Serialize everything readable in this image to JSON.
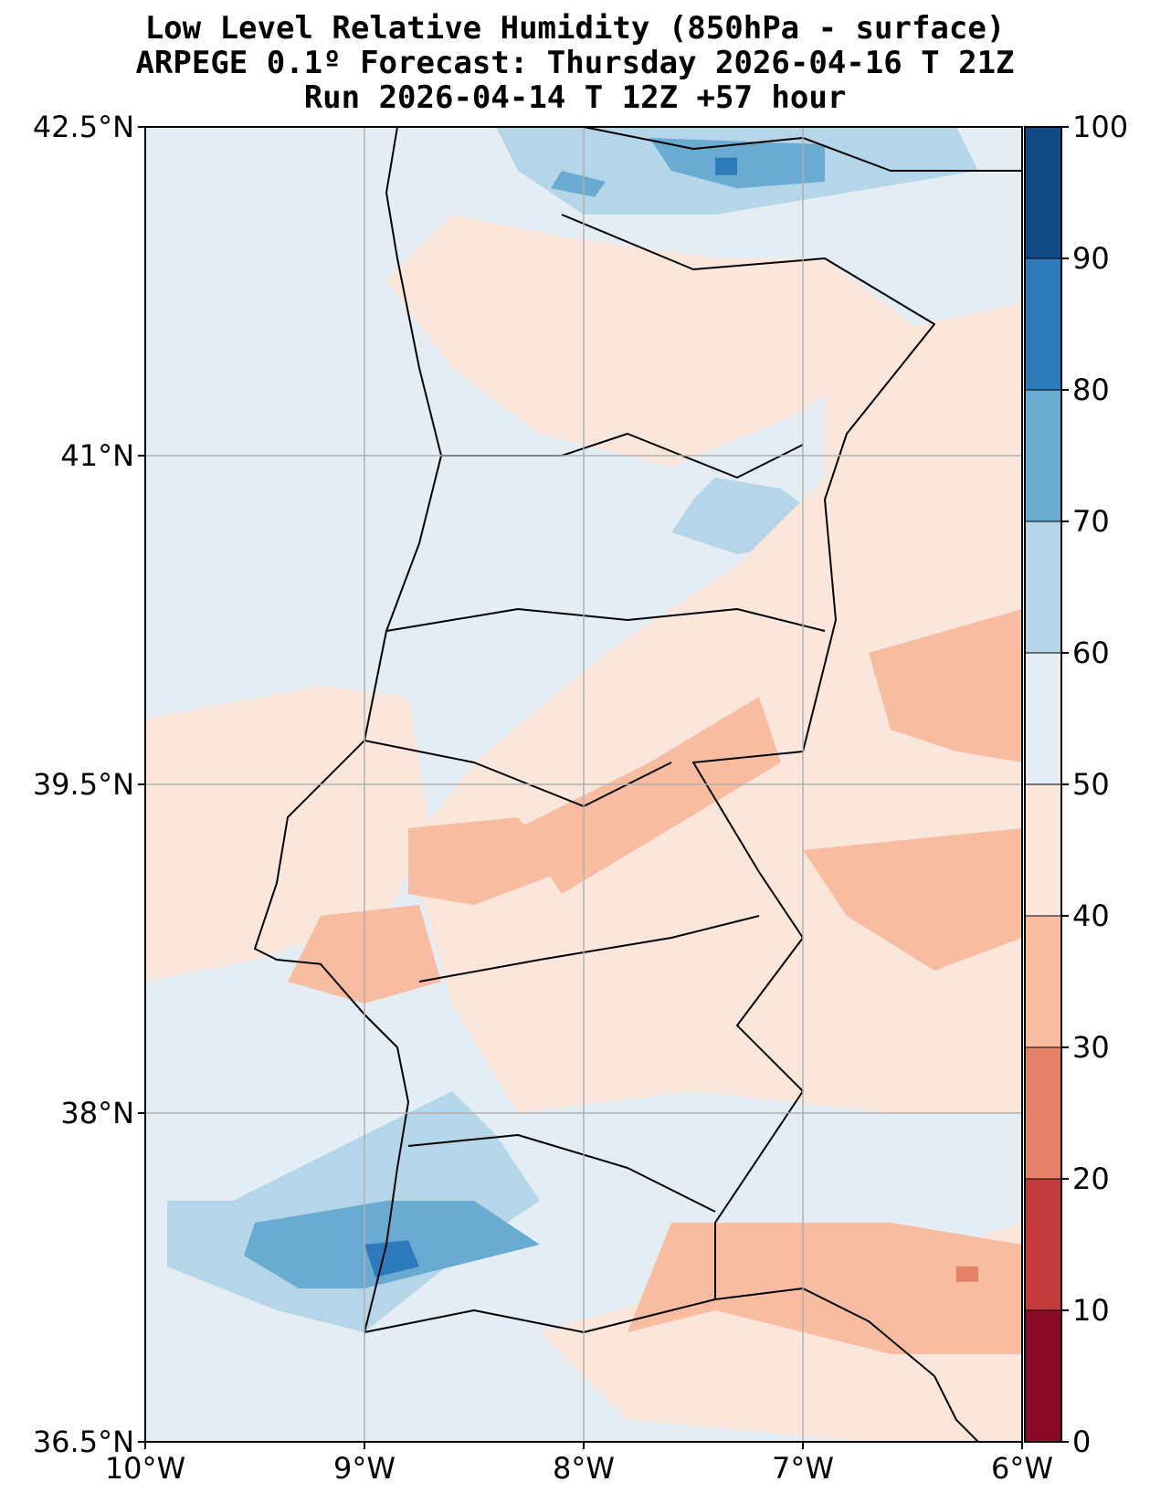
{
  "title": {
    "line1": "Low Level Relative Humidity (850hPa - surface)",
    "line2": "ARPEGE 0.1º Forecast: Thursday 2026-04-16 T 21Z",
    "line3": "Run 2026-04-14 T 12Z +57 hour"
  },
  "map": {
    "lon_range": [
      -10,
      -6
    ],
    "lat_range": [
      36.5,
      42.5
    ],
    "background_color": "#e4ecf4",
    "lon_ticks": [
      {
        "value": -10,
        "label": "10°W"
      },
      {
        "value": -9,
        "label": "9°W"
      },
      {
        "value": -8,
        "label": "8°W"
      },
      {
        "value": -7,
        "label": "7°W"
      },
      {
        "value": -6,
        "label": "6°W"
      }
    ],
    "lat_ticks": [
      {
        "value": 42.5,
        "label": "42.5°N"
      },
      {
        "value": 41,
        "label": "41°N"
      },
      {
        "value": 39.5,
        "label": "39.5°N"
      },
      {
        "value": 38,
        "label": "38°N"
      },
      {
        "value": 36.5,
        "label": "36.5°N"
      }
    ],
    "grid": true
  },
  "colorbar": {
    "levels": [
      0,
      10,
      20,
      30,
      40,
      50,
      60,
      70,
      80,
      90,
      100
    ],
    "colors": [
      "#8b0a26",
      "#c23a3b",
      "#e58267",
      "#f8bda1",
      "#fbe6dc",
      "#e4ecf4",
      "#b5d5e8",
      "#6aabd2",
      "#2e7bbb",
      "#124a87"
    ],
    "labels": [
      "0",
      "10",
      "20",
      "30",
      "40",
      "50",
      "60",
      "70",
      "80",
      "90",
      "100"
    ]
  },
  "regions": [
    {
      "name": "northern-moist-area",
      "level": 60,
      "lonlat": [
        [
          -8.4,
          42.5
        ],
        [
          -6.3,
          42.5
        ],
        [
          -6.2,
          42.3
        ],
        [
          -6.8,
          42.2
        ],
        [
          -7.4,
          42.1
        ],
        [
          -8.0,
          42.1
        ],
        [
          -8.3,
          42.3
        ]
      ]
    },
    {
      "name": "northern-core",
      "level": 70,
      "lonlat": [
        [
          -7.7,
          42.45
        ],
        [
          -6.9,
          42.42
        ],
        [
          -6.9,
          42.25
        ],
        [
          -7.3,
          42.22
        ],
        [
          -7.6,
          42.3
        ]
      ]
    },
    {
      "name": "northern-small-core",
      "level": 70,
      "lonlat": [
        [
          -8.1,
          42.3
        ],
        [
          -7.9,
          42.25
        ],
        [
          -7.95,
          42.18
        ],
        [
          -8.15,
          42.22
        ]
      ]
    },
    {
      "name": "northern-dark-cell",
      "level": 80,
      "lonlat": [
        [
          -7.4,
          42.36
        ],
        [
          -7.3,
          42.36
        ],
        [
          -7.3,
          42.28
        ],
        [
          -7.4,
          42.28
        ]
      ]
    },
    {
      "name": "central-moist-area",
      "level": 60,
      "lonlat": [
        [
          -7.4,
          40.9
        ],
        [
          -7.1,
          40.85
        ],
        [
          -6.9,
          40.7
        ],
        [
          -7.0,
          40.6
        ],
        [
          -7.3,
          40.55
        ],
        [
          -7.6,
          40.65
        ],
        [
          -7.5,
          40.8
        ]
      ]
    },
    {
      "name": "southwest-moist-area",
      "level": 60,
      "lonlat": [
        [
          -9.6,
          37.6
        ],
        [
          -9.0,
          37.9
        ],
        [
          -8.6,
          38.1
        ],
        [
          -8.4,
          37.9
        ],
        [
          -8.2,
          37.6
        ],
        [
          -8.5,
          37.4
        ],
        [
          -9.0,
          37.0
        ],
        [
          -9.4,
          37.1
        ],
        [
          -9.9,
          37.3
        ],
        [
          -9.9,
          37.6
        ]
      ]
    },
    {
      "name": "southwest-core",
      "level": 70,
      "lonlat": [
        [
          -9.5,
          37.5
        ],
        [
          -8.9,
          37.6
        ],
        [
          -8.5,
          37.6
        ],
        [
          -8.2,
          37.4
        ],
        [
          -8.6,
          37.3
        ],
        [
          -9.0,
          37.2
        ],
        [
          -9.3,
          37.2
        ],
        [
          -9.55,
          37.35
        ]
      ]
    },
    {
      "name": "southwest-dark-cell",
      "level": 80,
      "lonlat": [
        [
          -9.0,
          37.4
        ],
        [
          -8.8,
          37.42
        ],
        [
          -8.75,
          37.3
        ],
        [
          -8.95,
          37.25
        ]
      ]
    },
    {
      "name": "south-moist-area",
      "level": 60,
      "lonlat": [
        [
          -7.3,
          36.9
        ],
        [
          -6.8,
          36.95
        ],
        [
          -6.5,
          36.8
        ],
        [
          -6.8,
          36.65
        ],
        [
          -7.4,
          36.6
        ],
        [
          -7.6,
          36.7
        ]
      ]
    },
    {
      "name": "north-dry-area",
      "level": 40,
      "lonlat": [
        [
          -8.6,
          42.1
        ],
        [
          -8.1,
          42.0
        ],
        [
          -7.4,
          41.9
        ],
        [
          -6.9,
          41.9
        ],
        [
          -6.5,
          41.6
        ],
        [
          -7.0,
          41.2
        ],
        [
          -7.6,
          40.95
        ],
        [
          -8.2,
          41.1
        ],
        [
          -8.6,
          41.4
        ],
        [
          -8.9,
          41.8
        ]
      ]
    },
    {
      "name": "east-dry-area",
      "level": 40,
      "lonlat": [
        [
          -6.9,
          41.5
        ],
        [
          -6.0,
          41.7
        ],
        [
          -6.0,
          38.0
        ],
        [
          -6.6,
          38.0
        ],
        [
          -7.5,
          38.1
        ],
        [
          -8.3,
          38.0
        ],
        [
          -8.6,
          38.5
        ],
        [
          -8.8,
          39.2
        ],
        [
          -8.5,
          39.6
        ],
        [
          -7.9,
          40.1
        ],
        [
          -7.3,
          40.5
        ],
        [
          -6.9,
          40.9
        ]
      ]
    },
    {
      "name": "west-dry-band",
      "level": 40,
      "lonlat": [
        [
          -10.0,
          39.8
        ],
        [
          -9.2,
          39.95
        ],
        [
          -8.8,
          39.9
        ],
        [
          -8.7,
          39.3
        ],
        [
          -8.9,
          38.9
        ],
        [
          -9.5,
          38.7
        ],
        [
          -10.0,
          38.6
        ]
      ]
    },
    {
      "name": "south-dry-area",
      "level": 40,
      "lonlat": [
        [
          -8.2,
          37.0
        ],
        [
          -7.5,
          37.2
        ],
        [
          -6.6,
          37.3
        ],
        [
          -6.0,
          37.5
        ],
        [
          -6.0,
          36.5
        ],
        [
          -6.7,
          36.5
        ],
        [
          -7.8,
          36.6
        ]
      ]
    },
    {
      "name": "east-drier-zone",
      "level": 30,
      "lonlat": [
        [
          -6.7,
          40.1
        ],
        [
          -6.0,
          40.3
        ],
        [
          -6.0,
          39.6
        ],
        [
          -6.3,
          39.65
        ],
        [
          -6.6,
          39.75
        ]
      ]
    },
    {
      "name": "central-drier-zone",
      "level": 30,
      "lonlat": [
        [
          -8.3,
          39.3
        ],
        [
          -7.7,
          39.6
        ],
        [
          -7.2,
          39.9
        ],
        [
          -7.1,
          39.6
        ],
        [
          -7.6,
          39.3
        ],
        [
          -8.1,
          39.0
        ]
      ]
    },
    {
      "name": "east-mid-drier-zone",
      "level": 30,
      "lonlat": [
        [
          -7.0,
          39.2
        ],
        [
          -6.0,
          39.3
        ],
        [
          -6.0,
          38.8
        ],
        [
          -6.4,
          38.65
        ],
        [
          -6.8,
          38.9
        ]
      ]
    },
    {
      "name": "west-drier-zone",
      "level": 30,
      "lonlat": [
        [
          -8.8,
          39.3
        ],
        [
          -8.3,
          39.35
        ],
        [
          -8.1,
          39.1
        ],
        [
          -8.5,
          38.95
        ],
        [
          -8.8,
          39.0
        ]
      ]
    },
    {
      "name": "lisbon-drier-zone",
      "level": 30,
      "lonlat": [
        [
          -9.2,
          38.9
        ],
        [
          -8.75,
          38.95
        ],
        [
          -8.65,
          38.6
        ],
        [
          -9.0,
          38.5
        ],
        [
          -9.35,
          38.6
        ]
      ]
    },
    {
      "name": "south-drier-zone",
      "level": 30,
      "lonlat": [
        [
          -7.6,
          37.5
        ],
        [
          -6.6,
          37.5
        ],
        [
          -6.0,
          37.4
        ],
        [
          -6.0,
          36.9
        ],
        [
          -6.6,
          36.9
        ],
        [
          -7.4,
          37.1
        ],
        [
          -7.8,
          37.0
        ]
      ]
    },
    {
      "name": "south-driest-cell",
      "level": 20,
      "lonlat": [
        [
          -6.3,
          37.3
        ],
        [
          -6.2,
          37.3
        ],
        [
          -6.2,
          37.23
        ],
        [
          -6.3,
          37.23
        ]
      ]
    }
  ],
  "coastlines": [
    {
      "name": "west-coastline",
      "lonlat": [
        [
          -8.85,
          42.5
        ],
        [
          -8.9,
          42.2
        ],
        [
          -8.85,
          41.9
        ],
        [
          -8.75,
          41.4
        ],
        [
          -8.65,
          41.0
        ],
        [
          -8.75,
          40.6
        ],
        [
          -8.9,
          40.2
        ],
        [
          -9.0,
          39.7
        ],
        [
          -9.35,
          39.35
        ],
        [
          -9.4,
          39.05
        ],
        [
          -9.5,
          38.75
        ],
        [
          -9.4,
          38.7
        ],
        [
          -9.2,
          38.68
        ],
        [
          -9.0,
          38.45
        ],
        [
          -8.85,
          38.3
        ],
        [
          -8.8,
          38.05
        ],
        [
          -8.85,
          37.75
        ],
        [
          -8.9,
          37.4
        ],
        [
          -9.0,
          37.0
        ],
        [
          -8.5,
          37.1
        ],
        [
          -8.0,
          37.0
        ],
        [
          -7.6,
          37.1
        ],
        [
          -7.4,
          37.15
        ],
        [
          -7.0,
          37.2
        ],
        [
          -6.7,
          37.05
        ],
        [
          -6.4,
          36.8
        ],
        [
          -6.3,
          36.6
        ],
        [
          -6.2,
          36.5
        ]
      ]
    },
    {
      "name": "spain-border",
      "lonlat": [
        [
          -8.1,
          42.1
        ],
        [
          -7.5,
          41.85
        ],
        [
          -6.9,
          41.9
        ],
        [
          -6.4,
          41.6
        ],
        [
          -6.8,
          41.1
        ],
        [
          -6.9,
          40.8
        ],
        [
          -6.85,
          40.25
        ],
        [
          -7.0,
          39.65
        ],
        [
          -7.5,
          39.6
        ],
        [
          -7.2,
          39.1
        ],
        [
          -7.0,
          38.8
        ],
        [
          -7.3,
          38.4
        ],
        [
          -7.0,
          38.1
        ],
        [
          -7.4,
          37.5
        ],
        [
          -7.4,
          37.15
        ]
      ]
    },
    {
      "name": "galicia-interior",
      "lonlat": [
        [
          -8.0,
          42.5
        ],
        [
          -7.5,
          42.4
        ],
        [
          -7.0,
          42.45
        ],
        [
          -6.6,
          42.3
        ],
        [
          -6.0,
          42.3
        ]
      ]
    },
    {
      "name": "district-border-north",
      "lonlat": [
        [
          -8.65,
          41.0
        ],
        [
          -8.1,
          41.0
        ],
        [
          -7.8,
          41.1
        ],
        [
          -7.3,
          40.9
        ],
        [
          -7.0,
          41.05
        ]
      ]
    },
    {
      "name": "district-border-central",
      "lonlat": [
        [
          -8.9,
          40.2
        ],
        [
          -8.3,
          40.3
        ],
        [
          -7.8,
          40.25
        ],
        [
          -7.3,
          40.3
        ],
        [
          -6.9,
          40.2
        ]
      ]
    },
    {
      "name": "district-border-tejo",
      "lonlat": [
        [
          -9.0,
          39.7
        ],
        [
          -8.5,
          39.6
        ],
        [
          -8.0,
          39.4
        ],
        [
          -7.6,
          39.6
        ]
      ]
    },
    {
      "name": "district-border-alentejo",
      "lonlat": [
        [
          -8.75,
          38.6
        ],
        [
          -8.2,
          38.7
        ],
        [
          -7.6,
          38.8
        ],
        [
          -7.2,
          38.9
        ]
      ]
    },
    {
      "name": "district-border-south",
      "lonlat": [
        [
          -8.8,
          37.85
        ],
        [
          -8.3,
          37.9
        ],
        [
          -7.8,
          37.75
        ],
        [
          -7.4,
          37.55
        ]
      ]
    }
  ]
}
